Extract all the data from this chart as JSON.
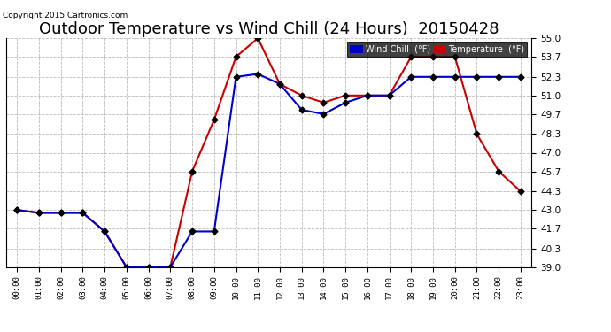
{
  "title": "Outdoor Temperature vs Wind Chill (24 Hours)  20150428",
  "copyright": "Copyright 2015 Cartronics.com",
  "background_color": "#ffffff",
  "grid_color": "#bbbbbb",
  "hours": [
    "00:00",
    "01:00",
    "02:00",
    "03:00",
    "04:00",
    "05:00",
    "06:00",
    "07:00",
    "08:00",
    "09:00",
    "10:00",
    "11:00",
    "12:00",
    "13:00",
    "14:00",
    "15:00",
    "16:00",
    "17:00",
    "18:00",
    "19:00",
    "20:00",
    "21:00",
    "22:00",
    "23:00"
  ],
  "temperature": [
    43.0,
    42.8,
    42.8,
    42.8,
    41.5,
    39.0,
    39.0,
    39.0,
    45.7,
    49.3,
    53.7,
    55.0,
    51.8,
    51.0,
    50.5,
    51.0,
    51.0,
    51.0,
    53.7,
    53.7,
    53.7,
    48.3,
    45.7,
    44.3
  ],
  "wind_chill": [
    43.0,
    42.8,
    42.8,
    42.8,
    41.5,
    39.0,
    39.0,
    39.0,
    41.5,
    41.5,
    52.3,
    52.5,
    51.8,
    50.0,
    49.7,
    50.5,
    51.0,
    51.0,
    52.3,
    52.3,
    52.3,
    52.3,
    52.3,
    52.3
  ],
  "temp_color": "#cc0000",
  "wind_chill_color": "#0000cc",
  "marker": "D",
  "marker_size": 3.5,
  "ylim": [
    39.0,
    55.0
  ],
  "yticks": [
    39.0,
    40.3,
    41.7,
    43.0,
    44.3,
    45.7,
    47.0,
    48.3,
    49.7,
    51.0,
    52.3,
    53.7,
    55.0
  ],
  "title_fontsize": 13,
  "legend_wind_chill_bg": "#0000cc",
  "legend_temp_bg": "#cc0000"
}
